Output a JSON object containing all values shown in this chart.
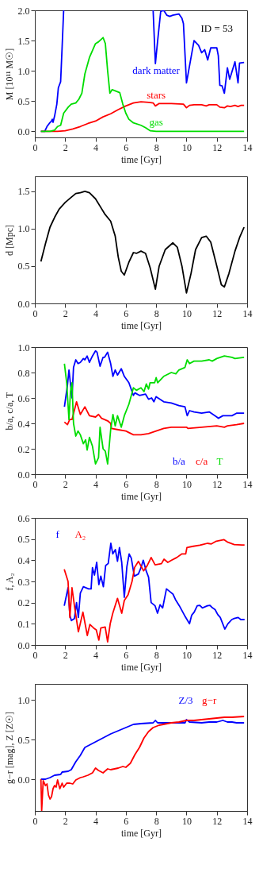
{
  "chart_data": [
    {
      "type": "line",
      "xlabel": "time [Gyr]",
      "ylabel": "M  [10¹¹ M☉]",
      "annotations": [
        "ID = 53"
      ],
      "xlim": [
        0,
        14
      ],
      "ylim": [
        -0.1,
        2.0
      ],
      "xticks": [
        0,
        2,
        4,
        6,
        8,
        10,
        12,
        14
      ],
      "yticks": [
        {
          "value": 0,
          "label": "0.0"
        },
        0.5,
        {
          "value": 1,
          "label": "1.0"
        },
        1.5,
        {
          "value": 2,
          "label": "2.0"
        }
      ],
      "grid": false,
      "marker": "none",
      "line_style": "solid",
      "series": [
        {
          "name": "dark matter",
          "color": "#0000ff",
          "x": [
            0.4,
            0.65,
            0.8,
            0.95,
            1.1,
            1.15,
            1.2,
            1.3,
            1.45,
            1.55,
            1.7,
            1.8,
            1.9,
            5.0,
            7.8,
            7.95,
            8.1,
            8.3,
            8.5,
            8.7,
            8.9,
            9.1,
            9.3,
            9.5,
            9.7,
            9.8,
            10.0,
            10.5,
            10.8,
            11.0,
            11.2,
            11.4,
            11.6,
            12.0,
            12.1,
            12.2,
            12.35,
            12.5,
            12.7,
            12.85,
            13.2,
            13.4,
            13.5,
            13.8
          ],
          "values": [
            0,
            0,
            0.08,
            0.13,
            0.17,
            0.2,
            0.15,
            0.25,
            0.45,
            0.72,
            0.82,
            1.4,
            2.0,
            null,
            2.0,
            1.12,
            1.5,
            1.98,
            2.0,
            1.92,
            1.9,
            1.92,
            1.93,
            1.94,
            1.87,
            1.78,
            0.8,
            1.5,
            1.42,
            1.3,
            1.35,
            1.18,
            1.38,
            1.38,
            1.25,
            0.76,
            0.75,
            0.63,
            1.05,
            0.86,
            1.15,
            0.8,
            1.13,
            1.14
          ]
        },
        {
          "name": "stars",
          "color": "#ff0000",
          "x": [
            0.4,
            1.5,
            2.0,
            2.5,
            3.0,
            3.5,
            4.0,
            4.5,
            5.0,
            5.5,
            6.0,
            6.5,
            7.0,
            7.5,
            7.8,
            7.95,
            8.2,
            9.0,
            9.8,
            10.0,
            10.2,
            10.5,
            11.0,
            11.3,
            11.5,
            12.0,
            12.2,
            12.5,
            12.7,
            12.9,
            13.2,
            13.4,
            13.6,
            13.8
          ],
          "values": [
            0,
            0,
            0.01,
            0.04,
            0.08,
            0.13,
            0.17,
            0.24,
            0.29,
            0.36,
            0.42,
            0.47,
            0.49,
            0.48,
            0.47,
            0.42,
            0.46,
            0.46,
            0.45,
            0.39,
            0.43,
            0.44,
            0.44,
            0.42,
            0.44,
            0.44,
            0.4,
            0.39,
            0.42,
            0.41,
            0.43,
            0.41,
            0.43,
            0.43
          ]
        },
        {
          "name": "gas",
          "color": "#00dd00",
          "x": [
            0.4,
            1.0,
            1.3,
            1.5,
            1.7,
            1.9,
            2.2,
            2.4,
            2.7,
            2.9,
            3.1,
            3.3,
            3.6,
            4.0,
            4.2,
            4.5,
            4.65,
            4.8,
            4.95,
            5.1,
            5.4,
            5.6,
            5.8,
            6.0,
            6.2,
            6.5,
            7.0,
            7.3,
            7.6,
            8.0,
            13.8
          ],
          "values": [
            0,
            0,
            0.02,
            0.08,
            0.1,
            0.3,
            0.4,
            0.45,
            0.47,
            0.53,
            0.63,
            0.95,
            1.22,
            1.45,
            1.48,
            1.55,
            1.45,
            1.0,
            0.63,
            0.69,
            0.66,
            0.64,
            0.45,
            0.3,
            0.2,
            0.14,
            0.1,
            0.06,
            0.01,
            0,
            0
          ]
        }
      ]
    },
    {
      "type": "line",
      "xlabel": "time [Gyr]",
      "ylabel": "d [Mpc]",
      "xlim": [
        0,
        14
      ],
      "ylim": [
        0,
        1.7
      ],
      "xticks": [
        0,
        2,
        4,
        6,
        8,
        10,
        12,
        14
      ],
      "yticks": [
        {
          "value": 0,
          "label": "0.0"
        },
        0.5,
        {
          "value": 1,
          "label": "1.0"
        },
        1.5
      ],
      "grid": false,
      "marker": "none",
      "line_style": "solid",
      "series": [
        {
          "color": "#000000",
          "x": [
            0.4,
            0.7,
            1.0,
            1.3,
            1.6,
            2.0,
            2.4,
            2.7,
            3.0,
            3.3,
            3.6,
            4.0,
            4.3,
            4.6,
            5.0,
            5.3,
            5.5,
            5.7,
            5.9,
            6.2,
            6.5,
            6.7,
            7.0,
            7.3,
            7.6,
            7.95,
            8.2,
            8.6,
            9.1,
            9.4,
            9.7,
            10.0,
            10.3,
            10.6,
            11.0,
            11.3,
            11.6,
            12.0,
            12.3,
            12.5,
            12.8,
            13.2,
            13.5,
            13.8
          ],
          "values": [
            0.56,
            0.8,
            1.02,
            1.15,
            1.26,
            1.35,
            1.42,
            1.47,
            1.48,
            1.5,
            1.48,
            1.4,
            1.3,
            1.2,
            1.1,
            0.9,
            0.62,
            0.43,
            0.38,
            0.55,
            0.68,
            0.67,
            0.7,
            0.67,
            0.48,
            0.19,
            0.5,
            0.72,
            0.81,
            0.75,
            0.5,
            0.14,
            0.4,
            0.72,
            0.88,
            0.9,
            0.82,
            0.5,
            0.25,
            0.22,
            0.4,
            0.7,
            0.88,
            1.02
          ]
        }
      ]
    },
    {
      "type": "line",
      "xlabel": "time [Gyr]",
      "ylabel": "b/a,  c/a,  T",
      "xlim": [
        0,
        14
      ],
      "ylim": [
        0,
        1.0
      ],
      "xticks": [
        0,
        2,
        4,
        6,
        8,
        10,
        12,
        14
      ],
      "yticks": [
        {
          "value": 0,
          "label": "0.0"
        },
        0.2,
        0.4,
        0.6,
        0.8,
        {
          "value": 1,
          "label": "1.0"
        }
      ],
      "grid": false,
      "marker": "none",
      "line_style": "solid",
      "series": [
        {
          "name": "b/a",
          "color": "#0000ff",
          "x": [
            1.95,
            2.15,
            2.25,
            2.45,
            2.55,
            2.7,
            2.85,
            3.0,
            3.2,
            3.3,
            3.45,
            3.6,
            3.8,
            4.0,
            4.1,
            4.3,
            4.5,
            4.6,
            4.8,
            5.0,
            5.15,
            5.3,
            5.45,
            5.7,
            5.9,
            6.2,
            6.5,
            6.6,
            6.9,
            7.3,
            7.5,
            7.7,
            7.85,
            8.0,
            8.5,
            9.0,
            9.5,
            9.9,
            10.05,
            10.2,
            10.5,
            11.0,
            11.5,
            12.0,
            12.1,
            12.4,
            13.0,
            13.3,
            13.8
          ],
          "values": [
            0.53,
            0.7,
            0.82,
            0.6,
            0.84,
            0.9,
            0.87,
            0.88,
            0.91,
            0.9,
            0.93,
            0.88,
            0.93,
            0.97,
            0.96,
            0.85,
            0.92,
            0.92,
            0.96,
            0.87,
            0.77,
            0.82,
            0.78,
            0.83,
            0.77,
            0.72,
            0.62,
            0.64,
            0.62,
            0.63,
            0.59,
            0.6,
            0.57,
            0.61,
            0.57,
            0.56,
            0.54,
            0.53,
            0.46,
            0.5,
            0.49,
            0.48,
            0.49,
            0.45,
            0.44,
            0.46,
            0.46,
            0.48,
            0.48
          ]
        },
        {
          "name": "c/a",
          "color": "#ff0000",
          "x": [
            1.95,
            2.15,
            2.3,
            2.45,
            2.75,
            3.0,
            3.2,
            3.3,
            3.6,
            4.0,
            4.2,
            4.4,
            4.8,
            5.0,
            5.05,
            5.5,
            6.0,
            6.5,
            7.0,
            7.5,
            8.0,
            8.5,
            9.0,
            10.0,
            10.1,
            11.0,
            12.0,
            12.5,
            12.7,
            13.3,
            13.8
          ],
          "values": [
            0.41,
            0.39,
            0.43,
            0.43,
            0.57,
            0.47,
            0.51,
            0.53,
            0.46,
            0.45,
            0.47,
            0.44,
            0.42,
            0.4,
            0.36,
            0.35,
            0.34,
            0.31,
            0.31,
            0.32,
            0.34,
            0.36,
            0.37,
            0.37,
            0.36,
            0.37,
            0.38,
            0.37,
            0.38,
            0.39,
            0.4
          ]
        },
        {
          "name": "T",
          "color": "#00dd00",
          "x": [
            1.95,
            2.1,
            2.25,
            2.35,
            2.45,
            2.55,
            2.7,
            2.85,
            3.0,
            3.2,
            3.35,
            3.45,
            3.6,
            3.8,
            4.0,
            4.2,
            4.3,
            4.5,
            4.65,
            4.8,
            5.0,
            5.15,
            5.3,
            5.45,
            5.7,
            5.9,
            6.2,
            6.5,
            6.7,
            7.0,
            7.2,
            7.35,
            7.5,
            7.6,
            7.9,
            8.0,
            8.1,
            8.5,
            9.0,
            9.3,
            9.5,
            9.9,
            10.05,
            10.2,
            10.5,
            11.0,
            11.5,
            11.7,
            12.0,
            12.5,
            13.0,
            13.2,
            13.8
          ],
          "values": [
            0.87,
            0.72,
            0.43,
            0.65,
            0.72,
            0.4,
            0.3,
            0.34,
            0.31,
            0.24,
            0.27,
            0.19,
            0.29,
            0.22,
            0.08,
            0.13,
            0.37,
            0.2,
            0.18,
            0.08,
            0.35,
            0.47,
            0.38,
            0.46,
            0.37,
            0.46,
            0.55,
            0.68,
            0.66,
            0.68,
            0.65,
            0.71,
            0.67,
            0.72,
            0.72,
            0.76,
            0.72,
            0.77,
            0.8,
            0.79,
            0.82,
            0.84,
            0.9,
            0.87,
            0.89,
            0.89,
            0.9,
            0.89,
            0.91,
            0.93,
            0.92,
            0.91,
            0.92
          ]
        }
      ]
    },
    {
      "type": "line",
      "xlabel": "time [Gyr]",
      "ylabel": "f,  A₂",
      "xlim": [
        0,
        14
      ],
      "ylim": [
        0,
        0.6
      ],
      "xticks": [
        0,
        2,
        4,
        6,
        8,
        10,
        12,
        14
      ],
      "yticks": [
        {
          "value": 0,
          "label": "0.0"
        },
        0.1,
        0.2,
        0.3,
        0.4,
        0.5,
        0.6
      ],
      "grid": false,
      "marker": "none",
      "line_style": "solid",
      "series": [
        {
          "name": "f",
          "color": "#0000ff",
          "x": [
            1.94,
            2.19,
            2.31,
            2.41,
            2.61,
            2.75,
            2.87,
            3.0,
            3.2,
            3.54,
            3.71,
            3.8,
            3.93,
            4.08,
            4.22,
            4.35,
            4.52,
            4.67,
            4.84,
            5.01,
            5.14,
            5.31,
            5.45,
            5.58,
            5.73,
            5.9,
            6.07,
            6.22,
            6.36,
            6.56,
            6.83,
            7.0,
            7.15,
            7.34,
            7.5,
            7.67,
            7.93,
            8.09,
            8.26,
            8.43,
            8.68,
            8.94,
            9.11,
            9.27,
            9.53,
            9.87,
            10.2,
            10.34,
            10.51,
            10.71,
            10.88,
            11.05,
            11.38,
            11.55,
            11.72,
            11.89,
            12.06,
            12.23,
            12.53,
            12.73,
            12.99,
            13.15,
            13.41,
            13.58,
            13.83
          ],
          "values": [
            0.185,
            0.27,
            0.14,
            0.115,
            0.125,
            0.2,
            0.13,
            0.245,
            0.275,
            0.265,
            0.265,
            0.365,
            0.33,
            0.39,
            0.285,
            0.325,
            0.275,
            0.375,
            0.385,
            0.48,
            0.43,
            0.45,
            0.395,
            0.46,
            0.39,
            0.225,
            0.37,
            0.43,
            0.41,
            0.325,
            0.335,
            0.365,
            0.4,
            0.35,
            0.32,
            0.2,
            0.185,
            0.15,
            0.19,
            0.175,
            0.265,
            0.25,
            0.24,
            0.215,
            0.185,
            0.14,
            0.1,
            0.14,
            0.155,
            0.185,
            0.187,
            0.175,
            0.185,
            0.187,
            0.175,
            0.167,
            0.144,
            0.13,
            0.075,
            0.1,
            0.12,
            0.125,
            0.13,
            0.12,
            0.12
          ]
        },
        {
          "name": "A₂",
          "color": "#ff0000",
          "x": [
            1.94,
            2.19,
            2.31,
            2.45,
            2.61,
            2.87,
            3.17,
            3.46,
            3.63,
            3.88,
            4.05,
            4.22,
            4.35,
            4.64,
            4.8,
            4.97,
            5.14,
            5.45,
            5.73,
            5.9,
            6.15,
            6.41,
            6.58,
            6.83,
            7.17,
            7.39,
            7.67,
            7.93,
            8.35,
            8.52,
            8.77,
            9.02,
            9.36,
            9.7,
            9.95,
            10.03,
            10.37,
            10.88,
            11.38,
            11.64,
            11.97,
            12.48,
            12.73,
            13.15,
            13.66,
            13.83
          ],
          "values": [
            0.357,
            0.3,
            0.13,
            0.27,
            0.185,
            0.062,
            0.155,
            0.045,
            0.097,
            0.08,
            0.071,
            0.023,
            0.08,
            0.085,
            0.015,
            0.1,
            0.15,
            0.22,
            0.15,
            0.21,
            0.237,
            0.3,
            0.366,
            0.395,
            0.35,
            0.372,
            0.413,
            0.378,
            0.384,
            0.405,
            0.39,
            0.4,
            0.413,
            0.43,
            0.43,
            0.46,
            0.465,
            0.471,
            0.48,
            0.477,
            0.49,
            0.497,
            0.485,
            0.474,
            0.472,
            0.472
          ]
        }
      ]
    },
    {
      "type": "line",
      "xlabel": "time [Gyr]",
      "ylabel": "g−r [mag],  Z [Z☉]",
      "xlim": [
        0,
        14
      ],
      "ylim": [
        -0.4,
        1.2
      ],
      "xticks": [
        0,
        2,
        4,
        6,
        8,
        10,
        12,
        14
      ],
      "yticks": [
        {
          "value": 0,
          "label": "0.0"
        },
        0.5,
        {
          "value": 1,
          "label": "1.0"
        }
      ],
      "grid": false,
      "marker": "none",
      "line_style": "solid",
      "series": [
        {
          "name": "Z/3",
          "color": "#0000ff",
          "x": [
            0.4,
            0.7,
            1.0,
            1.3,
            1.7,
            1.8,
            2.2,
            2.4,
            2.7,
            3.0,
            3.3,
            3.6,
            4.0,
            4.5,
            5.0,
            5.5,
            6.0,
            6.5,
            7.0,
            7.8,
            7.95,
            8.1,
            9.0,
            9.9,
            10.0,
            10.2,
            11.0,
            11.5,
            12.0,
            12.4,
            12.7,
            13.0,
            13.3,
            13.8
          ],
          "values": [
            0,
            0,
            0.02,
            0.05,
            0.06,
            0.09,
            0.1,
            0.12,
            0.22,
            0.3,
            0.4,
            0.43,
            0.47,
            0.52,
            0.57,
            0.61,
            0.65,
            0.69,
            0.7,
            0.71,
            0.74,
            0.71,
            0.71,
            0.71,
            0.75,
            0.72,
            0.71,
            0.72,
            0.72,
            0.74,
            0.72,
            0.72,
            0.71,
            0.71
          ]
        },
        {
          "name": "g−r",
          "color": "#ff0000",
          "x": [
            0.4,
            0.45,
            0.55,
            0.7,
            0.8,
            0.9,
            1.0,
            1.1,
            1.2,
            1.3,
            1.4,
            1.5,
            1.65,
            1.8,
            1.9,
            2.1,
            2.3,
            2.5,
            2.7,
            3.0,
            3.2,
            3.5,
            3.8,
            4.0,
            4.2,
            4.5,
            4.8,
            5.0,
            5.5,
            5.8,
            6.0,
            6.3,
            6.6,
            6.9,
            7.2,
            7.5,
            7.8,
            8.2,
            9.0,
            9.5,
            10.0,
            10.5,
            11.0,
            11.5,
            12.0,
            12.5,
            13.0,
            13.8
          ],
          "values": [
            0.0,
            -0.4,
            -0.02,
            -0.08,
            -0.06,
            -0.2,
            -0.25,
            -0.22,
            -0.12,
            -0.08,
            -0.1,
            -0.01,
            -0.12,
            -0.05,
            -0.1,
            -0.05,
            -0.05,
            -0.06,
            -0.01,
            0.02,
            0.03,
            0.05,
            0.08,
            0.14,
            0.11,
            0.08,
            0.13,
            0.12,
            0.14,
            0.16,
            0.15,
            0.2,
            0.31,
            0.4,
            0.52,
            0.6,
            0.65,
            0.68,
            0.71,
            0.72,
            0.74,
            0.74,
            0.75,
            0.76,
            0.77,
            0.78,
            0.78,
            0.79
          ]
        }
      ]
    }
  ]
}
